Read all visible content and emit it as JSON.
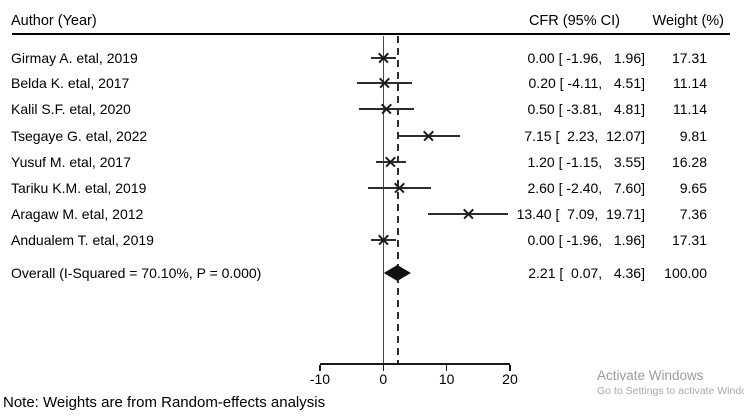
{
  "header": {
    "author_col": "Author (Year)",
    "cfr_col": "CFR (95% CI)",
    "weight_col": "Weight (%)"
  },
  "note": "Note: Weights are from Random-effects analysis",
  "watermark": {
    "title": "Activate Windows",
    "subtitle": "Go to Settings to activate Windows"
  },
  "colors": {
    "text": "#000000",
    "plot_line": "#2e2e2e",
    "zero_line": "#4a4a4a",
    "diamond": "#111111",
    "watermark_title": "#9b9b9b",
    "watermark_subtitle": "#a8a8a8"
  },
  "chart_data": {
    "type": "forest",
    "title": "",
    "xlabel": "",
    "effect_measure": "CFR",
    "xlim": [
      -10,
      20
    ],
    "x_ticks": [
      -10,
      0,
      10,
      20
    ],
    "null_line_x": 0,
    "overall_dashed_line_x": 2.21,
    "studies": [
      {
        "label": "Girmay A. etal, 2019",
        "estimate": 0.0,
        "ci_low": -1.96,
        "ci_high": 1.96,
        "cfr_text": "0.00 [ -1.96,   1.96]",
        "weight": 17.31,
        "weight_text": "17.31"
      },
      {
        "label": "Belda K. etal, 2017",
        "estimate": 0.2,
        "ci_low": -4.11,
        "ci_high": 4.51,
        "cfr_text": "0.20 [ -4.11,   4.51]",
        "weight": 11.14,
        "weight_text": "11.14"
      },
      {
        "label": "Kalil S.F. etal, 2020",
        "estimate": 0.5,
        "ci_low": -3.81,
        "ci_high": 4.81,
        "cfr_text": "0.50 [ -3.81,   4.81]",
        "weight": 11.14,
        "weight_text": "11.14"
      },
      {
        "label": "Tsegaye G. etal, 2022",
        "estimate": 7.15,
        "ci_low": 2.23,
        "ci_high": 12.07,
        "cfr_text": "7.15 [  2.23,  12.07]",
        "weight": 9.81,
        "weight_text": "9.81"
      },
      {
        "label": "Yusuf M. etal, 2017",
        "estimate": 1.2,
        "ci_low": -1.15,
        "ci_high": 3.55,
        "cfr_text": "1.20 [ -1.15,   3.55]",
        "weight": 16.28,
        "weight_text": "16.28"
      },
      {
        "label": "Tariku K.M. etal, 2019",
        "estimate": 2.6,
        "ci_low": -2.4,
        "ci_high": 7.6,
        "cfr_text": "2.60 [ -2.40,   7.60]",
        "weight": 9.65,
        "weight_text": "9.65"
      },
      {
        "label": "Aragaw M. etal, 2012",
        "estimate": 13.4,
        "ci_low": 7.09,
        "ci_high": 19.71,
        "cfr_text": "13.40 [  7.09,  19.71]",
        "weight": 7.36,
        "weight_text": "7.36"
      },
      {
        "label": "Andualem T. etal, 2019",
        "estimate": 0.0,
        "ci_low": -1.96,
        "ci_high": 1.96,
        "cfr_text": "0.00 [ -1.96,   1.96]",
        "weight": 17.31,
        "weight_text": "17.31"
      }
    ],
    "overall": {
      "label": "Overall (I-Squared = 70.10%, P = 0.000)",
      "estimate": 2.21,
      "ci_low": 0.07,
      "ci_high": 4.36,
      "cfr_text": "2.21 [  0.07,   4.36]",
      "weight": 100.0,
      "weight_text": "100.00"
    },
    "legend": null,
    "grid": false
  }
}
